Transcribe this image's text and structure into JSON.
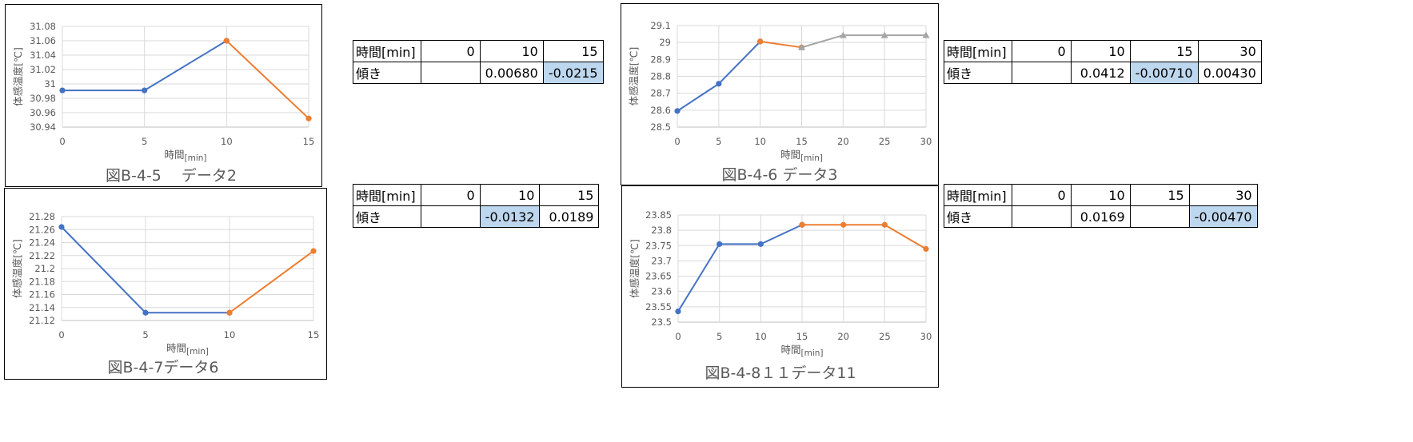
{
  "colors": {
    "series1": "#4472c4",
    "series2": "#ed7d31",
    "series3": "#a5a5a5",
    "grid": "#d9d9d9",
    "axis": "#bfbfbf",
    "highlight": "#bdd7ee"
  },
  "chart_data": [
    {
      "id": "chart1",
      "type": "line",
      "caption": "図B-4-5　 データ2",
      "ylabel": "体感温度[℃]",
      "xlabel_main": "時間",
      "xlabel_unit": "[min]",
      "x_ticks": [
        0,
        5,
        10,
        15
      ],
      "xlim": [
        0,
        15
      ],
      "y_ticks": [
        "30.94",
        "30.96",
        "30.98",
        "31",
        "31.02",
        "31.04",
        "31.06",
        "31.08"
      ],
      "ylim": [
        30.94,
        31.08
      ],
      "series": [
        {
          "x": [
            0,
            5,
            10
          ],
          "values": [
            30.991,
            30.991,
            31.06
          ],
          "color": "#4472c4",
          "marker": "circle"
        },
        {
          "x": [
            10,
            15
          ],
          "values": [
            31.06,
            30.952
          ],
          "color": "#ed7d31",
          "marker": "circle"
        }
      ]
    },
    {
      "id": "chart2",
      "type": "line",
      "caption": "図B-4-7データ6",
      "ylabel": "体感温度[℃]",
      "xlabel_main": "時間",
      "xlabel_unit": "[min]",
      "x_ticks": [
        0,
        5,
        10,
        15
      ],
      "xlim": [
        0,
        15
      ],
      "y_ticks": [
        "21.12",
        "21.14",
        "21.16",
        "21.18",
        "21.2",
        "21.22",
        "21.24",
        "21.26",
        "21.28"
      ],
      "ylim": [
        21.12,
        21.28
      ],
      "series": [
        {
          "x": [
            0,
            5,
            10
          ],
          "values": [
            21.264,
            21.132,
            21.132
          ],
          "color": "#4472c4",
          "marker": "circle"
        },
        {
          "x": [
            10,
            15
          ],
          "values": [
            21.132,
            21.227
          ],
          "color": "#ed7d31",
          "marker": "circle"
        }
      ]
    },
    {
      "id": "chart3",
      "type": "line",
      "caption": "図B-4-6 データ3",
      "ylabel": "体感温度[℃]",
      "xlabel_main": "時間",
      "xlabel_unit": "[min]",
      "x_ticks": [
        0,
        5,
        10,
        15,
        20,
        25,
        30
      ],
      "xlim": [
        0,
        30
      ],
      "y_ticks": [
        "28.5",
        "28.6",
        "28.7",
        "28.8",
        "28.9",
        "29",
        "29.1"
      ],
      "ylim": [
        28.5,
        29.1
      ],
      "series": [
        {
          "x": [
            0,
            5,
            10
          ],
          "values": [
            28.595,
            28.756,
            29.006
          ],
          "color": "#4472c4",
          "marker": "circle"
        },
        {
          "x": [
            10,
            15
          ],
          "values": [
            29.006,
            28.971
          ],
          "color": "#ed7d31",
          "marker": "circle"
        },
        {
          "x": [
            15,
            20,
            25,
            30
          ],
          "values": [
            28.971,
            29.043,
            29.043,
            29.043
          ],
          "color": "#a5a5a5",
          "marker": "triangle"
        }
      ]
    },
    {
      "id": "chart4",
      "type": "line",
      "caption": "図B-4-8１１データ11",
      "ylabel": "体感温度[℃]",
      "xlabel_main": "時間",
      "xlabel_unit": "[min]",
      "x_ticks": [
        0,
        5,
        10,
        15,
        20,
        25,
        30
      ],
      "xlim": [
        0,
        30
      ],
      "y_ticks": [
        "23.5",
        "23.55",
        "23.6",
        "23.65",
        "23.7",
        "23.75",
        "23.8",
        "23.85"
      ],
      "ylim": [
        23.5,
        23.85
      ],
      "series": [
        {
          "x": [
            0,
            5,
            10,
            15
          ],
          "values": [
            23.535,
            23.755,
            23.755,
            23.818
          ],
          "color": "#4472c4",
          "marker": "circle"
        },
        {
          "x": [
            15,
            20,
            25,
            30
          ],
          "values": [
            23.818,
            23.818,
            23.818,
            23.739
          ],
          "color": "#ed7d31",
          "marker": "circle"
        }
      ]
    }
  ],
  "tables": {
    "t1": {
      "header_label": "時間[min]",
      "header": [
        "0",
        "10",
        "15"
      ],
      "row_label": "傾き",
      "row": [
        "",
        "0.00680",
        "-0.0215"
      ],
      "highlight_col": 2
    },
    "t2": {
      "header_label": "時間[min]",
      "header": [
        "0",
        "10",
        "15"
      ],
      "row_label": "傾き",
      "row": [
        "",
        "-0.0132",
        "0.0189"
      ],
      "highlight_col": 1
    },
    "t3": {
      "header_label": "時間[min]",
      "header": [
        "0",
        "10",
        "15",
        "30"
      ],
      "row_label": "傾き",
      "row": [
        "",
        "0.0412",
        "-0.00710",
        "0.00430"
      ],
      "highlight_col": 2
    },
    "t4": {
      "header_label": "時間[min]",
      "header": [
        "0",
        "10",
        "15",
        "30"
      ],
      "row_label": "傾き",
      "row": [
        "",
        "0.0169",
        "",
        "-0.00470"
      ],
      "highlight_col": 3
    }
  }
}
